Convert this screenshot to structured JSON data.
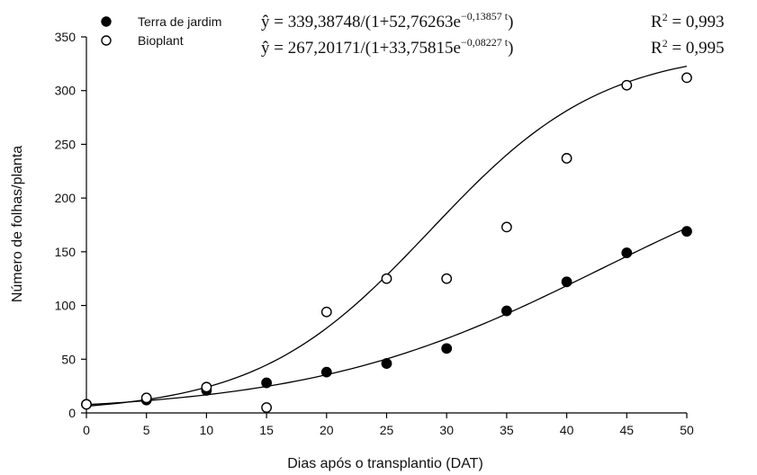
{
  "chart_data": {
    "type": "scatter",
    "title": "",
    "xlabel": "Dias após o transplantio (DAT)",
    "ylabel": "Número de folhas/planta",
    "xlim": [
      0,
      50
    ],
    "ylim": [
      0,
      350
    ],
    "xticks": [
      "0",
      "5",
      "10",
      "15",
      "20",
      "25",
      "30",
      "35",
      "40",
      "45",
      "50"
    ],
    "yticks": [
      "0",
      "50",
      "100",
      "150",
      "200",
      "250",
      "300",
      "350"
    ],
    "legend_position": "top-left",
    "series": [
      {
        "name": "Terra de jardim",
        "marker": "filled-circle",
        "x": [
          0,
          5,
          10,
          15,
          20,
          25,
          30,
          35,
          40,
          45,
          50
        ],
        "y": [
          8,
          12,
          21,
          28,
          38,
          46,
          60,
          95,
          122,
          149,
          169
        ],
        "fit": {
          "a": 339.38748,
          "b": 52.76263,
          "k": 0.13857
        },
        "equation": {
          "lhs": "ŷ = 339,38748/(1+52,76263e",
          "exp": "−0,13857 t",
          "rhs": ")",
          "r2_label": "R",
          "r2_sup": "2",
          "r2_value": " = 0,993"
        }
      },
      {
        "name": "Bioplant",
        "marker": "open-circle",
        "x": [
          0,
          5,
          10,
          15,
          20,
          25,
          30,
          35,
          40,
          45,
          50
        ],
        "y": [
          8,
          14,
          24,
          5,
          94,
          125,
          125,
          173,
          237,
          305,
          312
        ],
        "fit": {
          "a": 267.20171,
          "b": 33.75815,
          "k": 0.08227
        },
        "equation": {
          "lhs": "ŷ = 267,20171/(1+33,75815e",
          "exp": "−0,08227 t",
          "rhs": ")",
          "r2_label": "R",
          "r2_sup": "2",
          "r2_value": " = 0,995"
        }
      }
    ]
  }
}
